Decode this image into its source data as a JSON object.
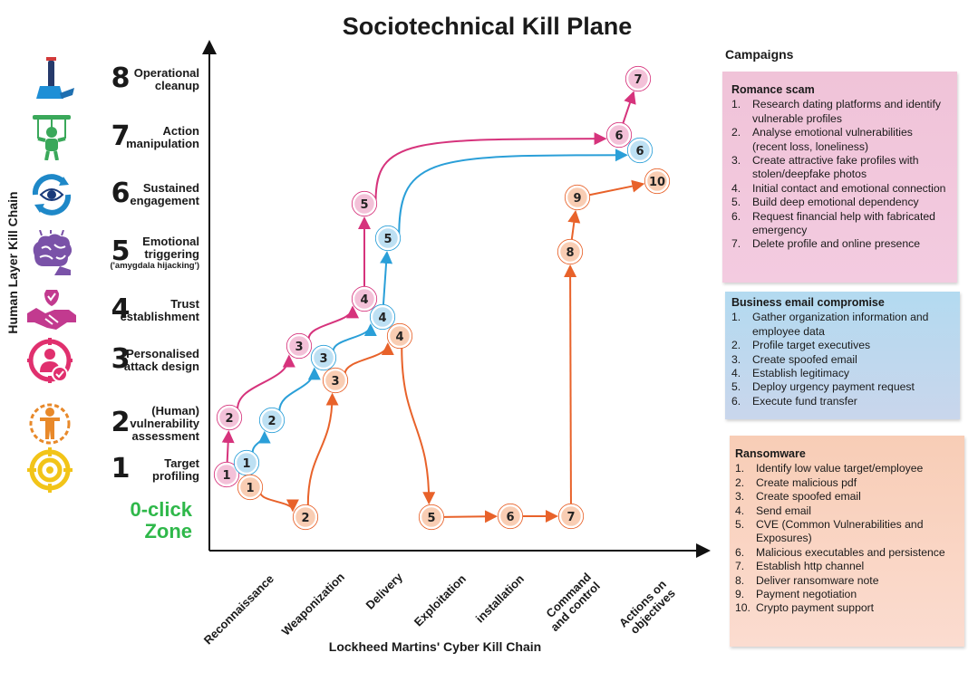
{
  "title": "Sociotechnical Kill Plane",
  "y_axis_title": "Human Layer Kill Chain",
  "x_axis_title": "Lockheed Martins' Cyber Kill Chain",
  "zero_click": [
    "0-click",
    "Zone"
  ],
  "levels": [
    {
      "num": "8",
      "lines": [
        "Operational",
        "cleanup"
      ],
      "icon": "broom-cleanup-icon",
      "color": "#1e6fb0"
    },
    {
      "num": "7",
      "lines": [
        "Action",
        "manipulation"
      ],
      "icon": "puppet-icon",
      "color": "#3aa85a"
    },
    {
      "num": "6",
      "lines": [
        "Sustained",
        "engagement"
      ],
      "icon": "eye-cycle-icon",
      "color": "#1e88c8"
    },
    {
      "num": "5",
      "lines": [
        "Emotional",
        "triggering"
      ],
      "sub": "('amygdala hijacking')",
      "icon": "brain-icon",
      "color": "#7a52a8"
    },
    {
      "num": "4",
      "lines": [
        "Trust",
        "establishment"
      ],
      "icon": "handshake-shield-icon",
      "color": "#c23a8f"
    },
    {
      "num": "3",
      "lines": [
        "Personalised",
        "attack design"
      ],
      "icon": "target-person-icon",
      "color": "#e0306e"
    },
    {
      "num": "2",
      "lines": [
        "(Human)",
        "vulnerability",
        "assessment"
      ],
      "icon": "person-scan-icon",
      "color": "#e8892a"
    },
    {
      "num": "1",
      "lines": [
        "Target",
        "profiling"
      ],
      "icon": "crosshair-icon",
      "color": "#f2c419"
    }
  ],
  "x_ticks": [
    [
      "Reconnaissance"
    ],
    [
      "Weaponization"
    ],
    [
      "Delivery"
    ],
    [
      "Exploitation"
    ],
    [
      "installation"
    ],
    [
      "Command",
      "and control"
    ],
    [
      "Actions on",
      "objectives"
    ]
  ],
  "campaigns_heading": "Campaigns",
  "campaigns": [
    {
      "name": "Romance scam",
      "color": "#d6337c",
      "steps": [
        "Research dating platforms and identify vulnerable profiles",
        "Analyse emotional vulnerabilities (recent loss, loneliness)",
        "Create attractive fake profiles with stolen/deepfake photos",
        "Initial contact and emotional connection",
        "Build deep emotional dependency",
        "Request financial help with fabricated emergency",
        "Delete profile and online presence"
      ]
    },
    {
      "name": "Business email compromise",
      "color": "#2a9fd8",
      "steps": [
        "Gather organization information and employee data",
        "Profile target executives",
        "Create spoofed email",
        "Establish legitimacy",
        "Deploy urgency payment request",
        "Execute fund transfer"
      ]
    },
    {
      "name": "Ransomware",
      "color": "#e8622a",
      "steps": [
        "Identify low value target/employee",
        "Create malicious pdf",
        "Create spoofed email",
        "Send email",
        "CVE (Common Vulnerabilities and Exposures)",
        "Malicious executables and persistence",
        "Establish http channel",
        "Deliver ransomware note",
        "Payment negotiation",
        "Crypto payment support"
      ]
    }
  ]
}
